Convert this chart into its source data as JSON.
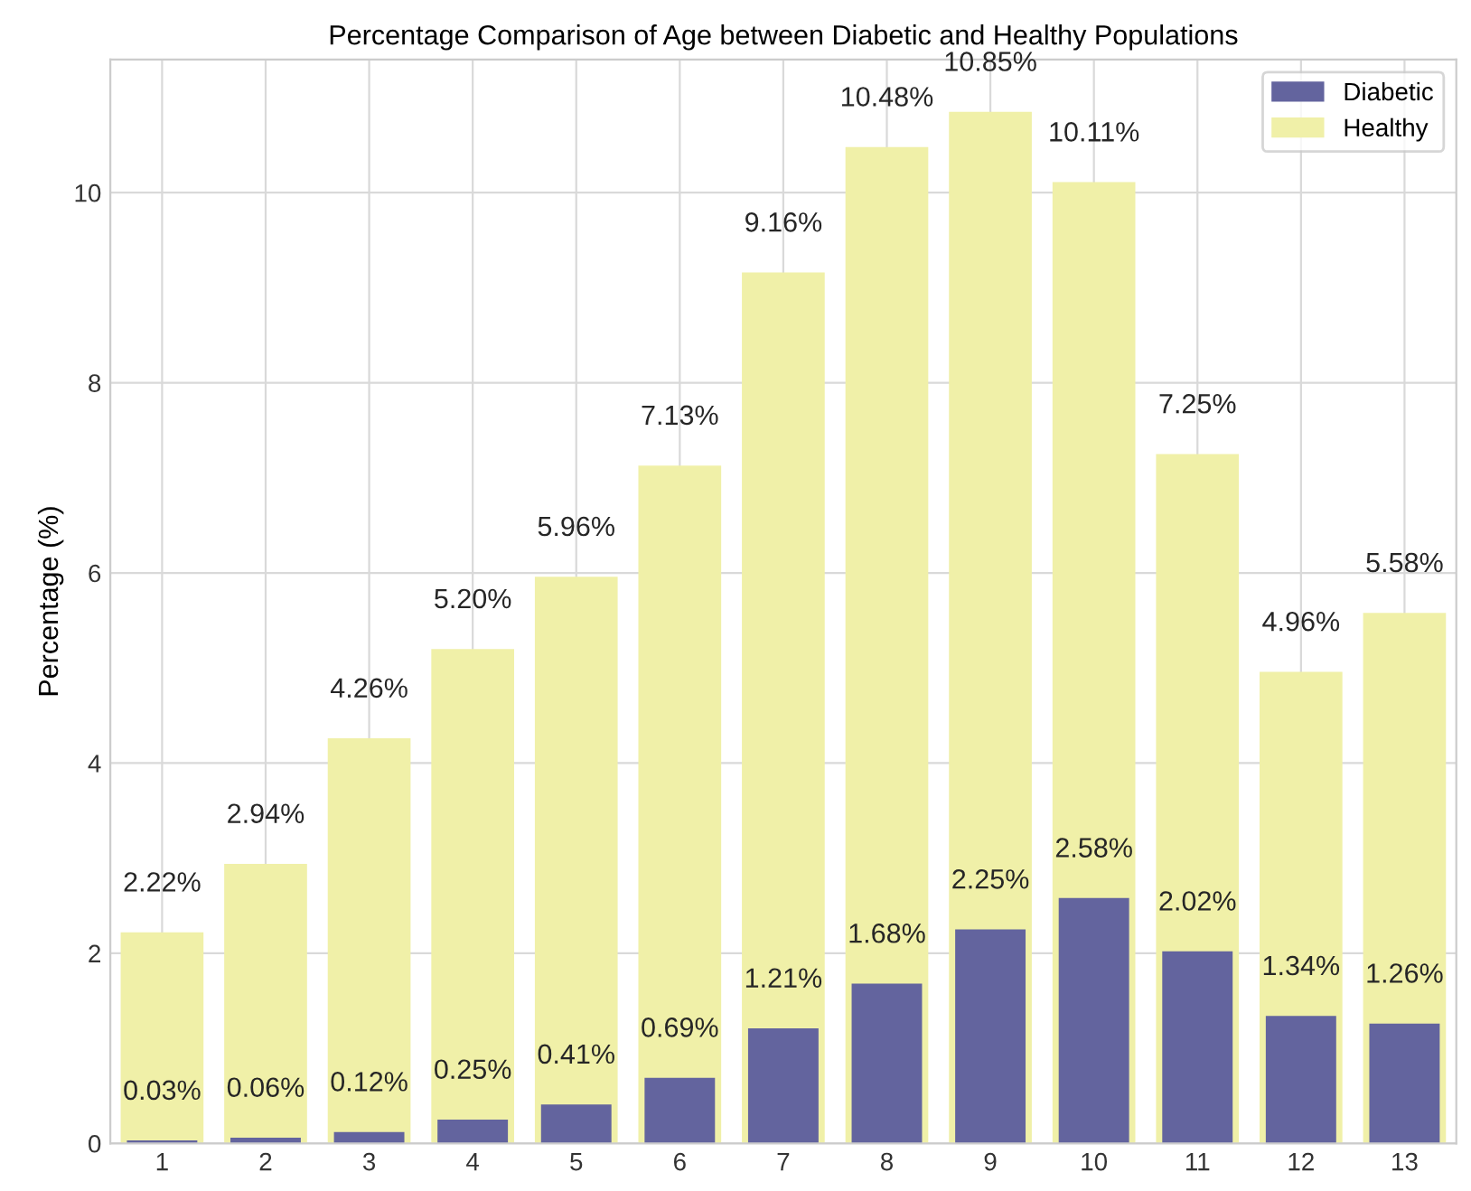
{
  "chart_data": {
    "type": "bar",
    "title": "Percentage Comparison of Age between Diabetic and Healthy Populations",
    "ylabel": "Percentage (%)",
    "categories": [
      "1",
      "2",
      "3",
      "4",
      "5",
      "6",
      "7",
      "8",
      "9",
      "10",
      "11",
      "12",
      "13"
    ],
    "series": [
      {
        "name": "Healthy",
        "color": "#f0f0a8",
        "values": [
          2.22,
          2.94,
          4.26,
          5.2,
          5.96,
          7.13,
          9.16,
          10.48,
          10.85,
          10.11,
          7.25,
          4.96,
          5.58
        ],
        "value_labels": [
          "2.22%",
          "2.94%",
          "4.26%",
          "5.20%",
          "5.96%",
          "7.13%",
          "9.16%",
          "10.48%",
          "10.85%",
          "10.11%",
          "7.25%",
          "4.96%",
          "5.58%"
        ]
      },
      {
        "name": "Diabetic",
        "color": "#63649e",
        "values": [
          0.03,
          0.06,
          0.12,
          0.25,
          0.41,
          0.69,
          1.21,
          1.68,
          2.25,
          2.58,
          2.02,
          1.34,
          1.26
        ],
        "value_labels": [
          "0.03%",
          "0.06%",
          "0.12%",
          "0.25%",
          "0.41%",
          "0.69%",
          "1.21%",
          "1.68%",
          "2.25%",
          "2.58%",
          "2.02%",
          "1.34%",
          "1.26%"
        ]
      }
    ],
    "ylim": [
      0,
      11.4
    ],
    "yticks": [
      0,
      2,
      4,
      6,
      8,
      10
    ],
    "grid": true,
    "legend": "top right"
  }
}
